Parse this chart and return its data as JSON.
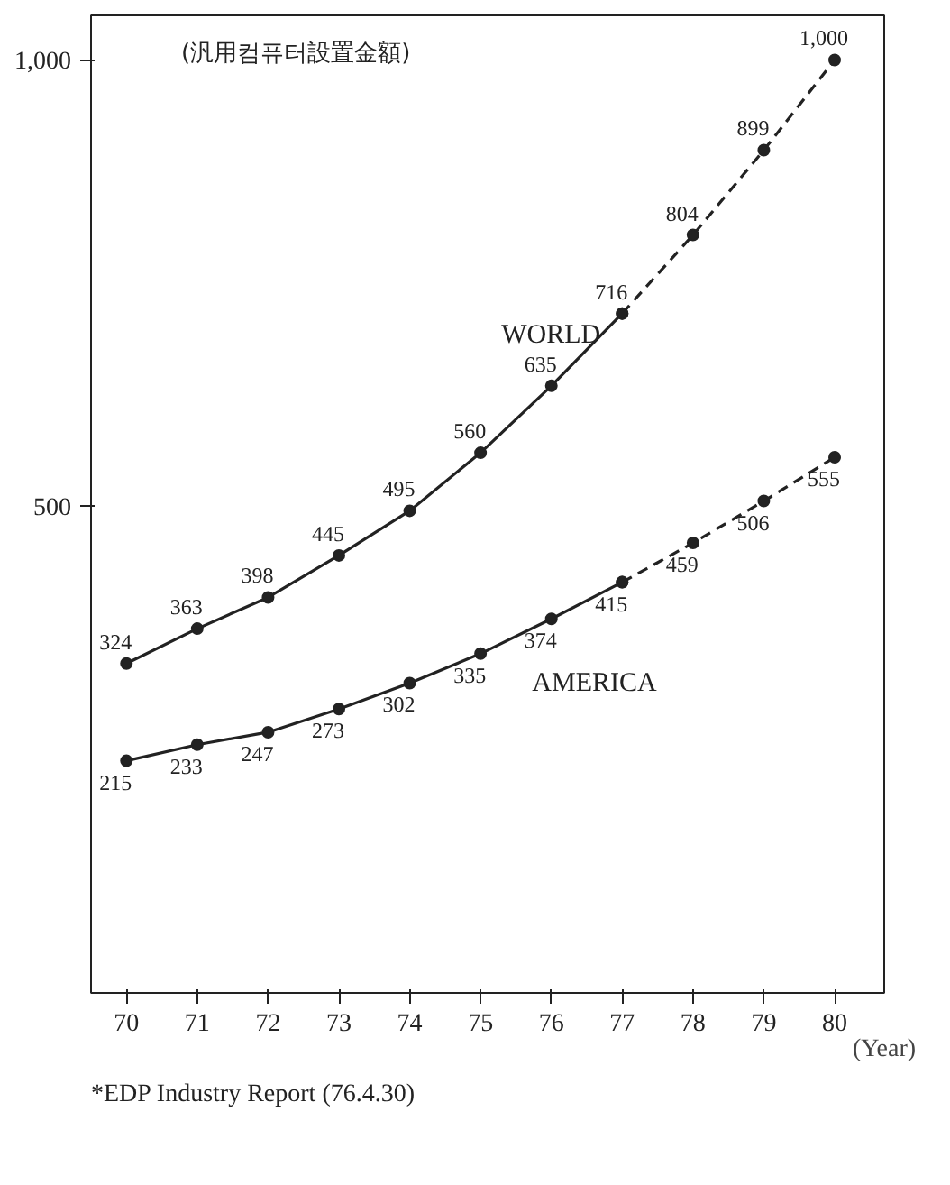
{
  "chart_data": {
    "type": "line",
    "title": "(汎用컴퓨터設置金額)",
    "xlabel": "(Year)",
    "xlim": [
      69.5,
      80.7
    ],
    "xticks": [
      70,
      71,
      72,
      73,
      74,
      75,
      76,
      77,
      78,
      79,
      80
    ],
    "ylim": [
      -45,
      1050
    ],
    "yticks": [
      500,
      {
        "value": 1000,
        "label": "1,000"
      }
    ],
    "grid": false,
    "marker": "circle",
    "data_labels": true,
    "series": [
      {
        "name": "WORLD",
        "color": "#222222",
        "line_style": "solid",
        "x": [
          70,
          71,
          72,
          73,
          74,
          75,
          76,
          77
        ],
        "values": [
          324,
          363,
          398,
          445,
          495,
          560,
          635,
          716
        ]
      },
      {
        "color": "#222222",
        "line_style": "dashed",
        "x": [
          77,
          78,
          79,
          80
        ],
        "values": [
          716,
          804,
          899,
          1000
        ],
        "value_labels": [
          null,
          "804",
          "899",
          "1,000"
        ]
      },
      {
        "name": "AMERICA",
        "color": "#222222",
        "line_style": "solid",
        "x": [
          70,
          71,
          72,
          73,
          74,
          75,
          76,
          77
        ],
        "values": [
          215,
          233,
          247,
          273,
          302,
          335,
          374,
          415
        ]
      },
      {
        "color": "#222222",
        "line_style": "dashed",
        "x": [
          77,
          78,
          79,
          80
        ],
        "values": [
          415,
          459,
          506,
          555
        ],
        "value_labels": [
          null,
          "459",
          "506",
          "555"
        ]
      }
    ],
    "annotations": [
      "*EDP Industry Report (76.4.30)"
    ]
  }
}
